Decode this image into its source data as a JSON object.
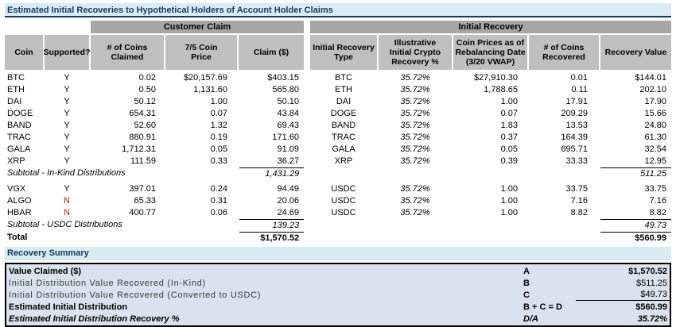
{
  "title": "Estimated Initial Recoveries to Hypothetical Holders of Account Holder Claims",
  "table": {
    "groups": {
      "customer_claim": "Customer Claim",
      "initial_recovery": "Initial Recovery"
    },
    "columns": [
      "Coin",
      "Supported?",
      "# of Coins\nClaimed",
      "7/5 Coin\nPrice",
      "Claim ($)",
      "Initial Recovery\nType",
      "Illustrative\nInitial Crypto\nRecovery %",
      "Coin Prices as of\nRebalancing Date\n(3/20 VWAP)",
      "# of Coins\nRecovered",
      "Recovery Value"
    ],
    "in_kind_rows": [
      {
        "coin": "BTC",
        "supported": "Y",
        "coins_claimed": "0.02",
        "coin_price": "$20,157.69",
        "claim": "$403.15",
        "recovery_type": "BTC",
        "recovery_pct": "35.72%",
        "rebal_price": "$27,910.30",
        "coins_recovered": "0.01",
        "recovery_value": "$144.01"
      },
      {
        "coin": "ETH",
        "supported": "Y",
        "coins_claimed": "0.50",
        "coin_price": "1,131.60",
        "claim": "565.80",
        "recovery_type": "ETH",
        "recovery_pct": "35.72%",
        "rebal_price": "1,788.65",
        "coins_recovered": "0.11",
        "recovery_value": "202.10"
      },
      {
        "coin": "DAI",
        "supported": "Y",
        "coins_claimed": "50.12",
        "coin_price": "1.00",
        "claim": "50.10",
        "recovery_type": "DAI",
        "recovery_pct": "35.72%",
        "rebal_price": "1.00",
        "coins_recovered": "17.91",
        "recovery_value": "17.90"
      },
      {
        "coin": "DOGE",
        "supported": "Y",
        "coins_claimed": "654.31",
        "coin_price": "0.07",
        "claim": "43.84",
        "recovery_type": "DOGE",
        "recovery_pct": "35.72%",
        "rebal_price": "0.07",
        "coins_recovered": "209.29",
        "recovery_value": "15.66"
      },
      {
        "coin": "BAND",
        "supported": "Y",
        "coins_claimed": "52.60",
        "coin_price": "1.32",
        "claim": "69.43",
        "recovery_type": "BAND",
        "recovery_pct": "35.72%",
        "rebal_price": "1.83",
        "coins_recovered": "13.53",
        "recovery_value": "24.80"
      },
      {
        "coin": "TRAC",
        "supported": "Y",
        "coins_claimed": "880.91",
        "coin_price": "0.19",
        "claim": "171.60",
        "recovery_type": "TRAC",
        "recovery_pct": "35.72%",
        "rebal_price": "0.37",
        "coins_recovered": "164.39",
        "recovery_value": "61.30"
      },
      {
        "coin": "GALA",
        "supported": "Y",
        "coins_claimed": "1,712.31",
        "coin_price": "0.05",
        "claim": "91.09",
        "recovery_type": "GALA",
        "recovery_pct": "35.72%",
        "rebal_price": "0.05",
        "coins_recovered": "695.71",
        "recovery_value": "32.54"
      },
      {
        "coin": "XRP",
        "supported": "Y",
        "coins_claimed": "111.59",
        "coin_price": "0.33",
        "claim": "36.27",
        "recovery_type": "XRP",
        "recovery_pct": "35.72%",
        "rebal_price": "0.39",
        "coins_recovered": "33.33",
        "recovery_value": "12.95"
      }
    ],
    "in_kind_subtotal": {
      "label": "Subtotal - In-Kind Distributions",
      "claim": "1,431.29",
      "recovery_value": "511.25"
    },
    "usdc_rows": [
      {
        "coin": "VGX",
        "supported": "Y",
        "coins_claimed": "397.01",
        "coin_price": "0.24",
        "claim": "94.49",
        "recovery_type": "USDC",
        "recovery_pct": "35.72%",
        "rebal_price": "1.00",
        "coins_recovered": "33.75",
        "recovery_value": "33.75"
      },
      {
        "coin": "ALGO",
        "supported": "N",
        "coins_claimed": "65.33",
        "coin_price": "0.31",
        "claim": "20.06",
        "recovery_type": "USDC",
        "recovery_pct": "35.72%",
        "rebal_price": "1.00",
        "coins_recovered": "7.16",
        "recovery_value": "7.16"
      },
      {
        "coin": "HBAR",
        "supported": "N",
        "coins_claimed": "400.77",
        "coin_price": "0.06",
        "claim": "24.69",
        "recovery_type": "USDC",
        "recovery_pct": "35.72%",
        "rebal_price": "1.00",
        "coins_recovered": "8.82",
        "recovery_value": "8.82"
      }
    ],
    "usdc_subtotal": {
      "label": "Subtotal - USDC Distributions",
      "claim": "139.23",
      "recovery_value": "49.73"
    },
    "total": {
      "label": "Total",
      "claim": "$1,570.52",
      "recovery_value": "$560.99"
    }
  },
  "summary": {
    "header": "Recovery Summary",
    "rows": [
      {
        "label": "Value Claimed ($)",
        "formula": "A",
        "value": "$1,570.52",
        "style": "bold",
        "underline": false
      },
      {
        "label": "Initial Distribution Value Recovered (In-Kind)",
        "formula": "B",
        "value": "$511.25",
        "style": "spaced",
        "underline": false
      },
      {
        "label": "Initial Distribution Value Recovered (Converted to USDC)",
        "formula": "C",
        "value": "$49.73",
        "style": "spaced",
        "underline": true
      },
      {
        "label": "Estimated Initial Distribution",
        "formula": "B + C = D",
        "value": "$560.99",
        "style": "bold",
        "underline": false
      },
      {
        "label": "Estimated Initial Distribution Recovery %",
        "formula": "D/A",
        "value": "35.72%",
        "style": "bold-italic",
        "underline": false
      }
    ]
  },
  "colors": {
    "title_bar_bg": "#d9ecf4",
    "title_text": "#17375e",
    "group_header_bg": "#a6a6a6",
    "column_header_bg": "#bfbfbf",
    "summary_box_bg": "#dbe2ef",
    "unsupported_red": "#e01010"
  }
}
